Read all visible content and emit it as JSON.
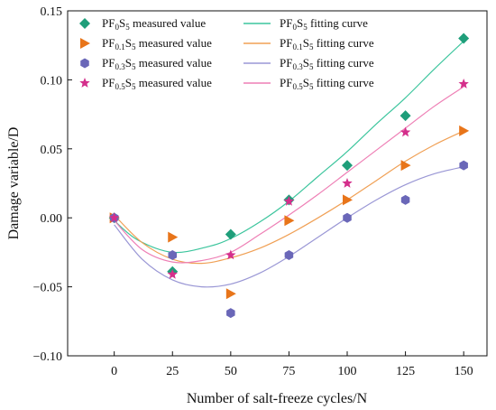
{
  "chart_data": {
    "type": "scatter",
    "xlabel": "Number of salt-freeze cycles/N",
    "ylabel": "Damage variable/D",
    "xlim": [
      -20,
      160
    ],
    "ylim": [
      -0.1,
      0.15
    ],
    "xticks": [
      0,
      25,
      50,
      75,
      100,
      125,
      150
    ],
    "yticks": [
      -0.1,
      -0.05,
      0.0,
      0.05,
      0.1,
      0.15
    ],
    "ytick_labels": [
      "−0.10",
      "−0.05",
      "0.00",
      "0.05",
      "0.10",
      "0.15"
    ],
    "xtick_labels": [
      "0",
      "25",
      "50",
      "75",
      "100",
      "125",
      "150"
    ],
    "legend_position": "top",
    "grid": false,
    "x": [
      0,
      25,
      50,
      75,
      100,
      125,
      150
    ],
    "series": [
      {
        "name": "PF0S5",
        "measured_label": "measured value",
        "fitting_label": "fitting curve",
        "label_parts": {
          "pre": "PF",
          "sub1": "0",
          "mid": "S",
          "sub2": "5"
        },
        "marker": "diamond",
        "color": "#1f9e7a",
        "curve_color": "#3cc59d",
        "values": [
          0.0,
          -0.039,
          -0.012,
          0.013,
          0.038,
          0.074,
          0.13
        ],
        "fit_points": [
          [
            0,
            -0.002
          ],
          [
            10,
            -0.016
          ],
          [
            25,
            -0.025
          ],
          [
            40,
            -0.021
          ],
          [
            50,
            -0.015
          ],
          [
            62.5,
            -0.003
          ],
          [
            75,
            0.012
          ],
          [
            87.5,
            0.03
          ],
          [
            100,
            0.048
          ],
          [
            112.5,
            0.068
          ],
          [
            125,
            0.087
          ],
          [
            137.5,
            0.108
          ],
          [
            150,
            0.128
          ]
        ]
      },
      {
        "name": "PF0.1S5",
        "measured_label": "measured value",
        "fitting_label": "fitting curve",
        "label_parts": {
          "pre": "PF",
          "sub1": "0.1",
          "mid": "S",
          "sub2": "5"
        },
        "marker": "triangle-right",
        "color": "#e8751a",
        "curve_color": "#f0a055",
        "values": [
          0.0,
          -0.014,
          -0.055,
          -0.002,
          0.013,
          0.038,
          0.063
        ],
        "fit_points": [
          [
            0,
            0.002
          ],
          [
            12,
            -0.018
          ],
          [
            25,
            -0.03
          ],
          [
            37.5,
            -0.033
          ],
          [
            50,
            -0.029
          ],
          [
            62.5,
            -0.022
          ],
          [
            75,
            -0.012
          ],
          [
            87.5,
            0.0
          ],
          [
            100,
            0.013
          ],
          [
            112.5,
            0.027
          ],
          [
            125,
            0.041
          ],
          [
            137.5,
            0.053
          ],
          [
            150,
            0.063
          ]
        ]
      },
      {
        "name": "PF0.3S5",
        "measured_label": "measured value",
        "fitting_label": "fitting curve",
        "label_parts": {
          "pre": "PF",
          "sub1": "0.3",
          "mid": "S",
          "sub2": "5"
        },
        "marker": "hexagon",
        "color": "#6a67b8",
        "curve_color": "#9a97d5",
        "values": [
          0.0,
          -0.027,
          -0.069,
          -0.027,
          0.0,
          0.013,
          0.038
        ],
        "fit_points": [
          [
            0,
            -0.005
          ],
          [
            12,
            -0.03
          ],
          [
            25,
            -0.045
          ],
          [
            37.5,
            -0.05
          ],
          [
            50,
            -0.048
          ],
          [
            62.5,
            -0.04
          ],
          [
            75,
            -0.028
          ],
          [
            87.5,
            -0.014
          ],
          [
            100,
            0.0
          ],
          [
            112.5,
            0.013
          ],
          [
            125,
            0.024
          ],
          [
            137.5,
            0.032
          ],
          [
            150,
            0.037
          ]
        ]
      },
      {
        "name": "PF0.5S5",
        "measured_label": "measured value",
        "fitting_label": "fitting curve",
        "label_parts": {
          "pre": "PF",
          "sub1": "0.5",
          "mid": "S",
          "sub2": "5"
        },
        "marker": "star",
        "color": "#d42f8b",
        "curve_color": "#ee7fb5",
        "values": [
          0.0,
          -0.041,
          -0.027,
          0.012,
          0.025,
          0.062,
          0.097
        ],
        "fit_points": [
          [
            0,
            -0.002
          ],
          [
            12,
            -0.023
          ],
          [
            25,
            -0.032
          ],
          [
            37.5,
            -0.031
          ],
          [
            50,
            -0.025
          ],
          [
            62.5,
            -0.012
          ],
          [
            75,
            0.002
          ],
          [
            87.5,
            0.017
          ],
          [
            100,
            0.033
          ],
          [
            112.5,
            0.049
          ],
          [
            125,
            0.065
          ],
          [
            137.5,
            0.081
          ],
          [
            150,
            0.095
          ]
        ]
      }
    ]
  }
}
